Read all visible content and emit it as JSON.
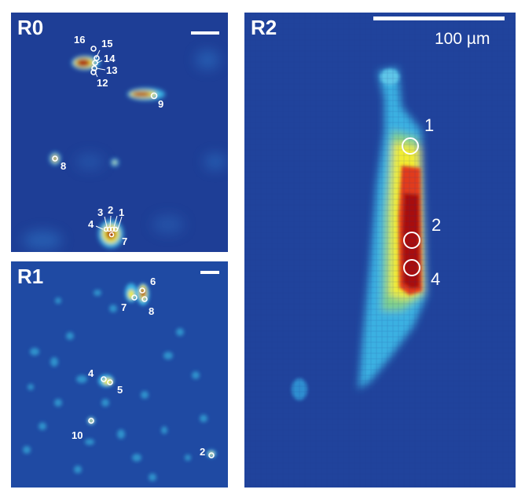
{
  "panels": {
    "r0": {
      "label": "R0",
      "rois": [
        {
          "id": "1",
          "label": "1"
        },
        {
          "id": "2",
          "label": "2"
        },
        {
          "id": "3",
          "label": "3"
        },
        {
          "id": "4",
          "label": "4"
        },
        {
          "id": "7",
          "label": "7"
        },
        {
          "id": "8",
          "label": "8"
        },
        {
          "id": "9",
          "label": "9"
        },
        {
          "id": "12",
          "label": "12"
        },
        {
          "id": "13",
          "label": "13"
        },
        {
          "id": "14",
          "label": "14"
        },
        {
          "id": "15",
          "label": "15"
        },
        {
          "id": "16",
          "label": "16"
        }
      ]
    },
    "r1": {
      "label": "R1",
      "rois": [
        {
          "id": "2",
          "label": "2"
        },
        {
          "id": "4",
          "label": "4"
        },
        {
          "id": "5",
          "label": "5"
        },
        {
          "id": "6",
          "label": "6"
        },
        {
          "id": "7",
          "label": "7"
        },
        {
          "id": "8",
          "label": "8"
        },
        {
          "id": "10",
          "label": "10"
        }
      ]
    },
    "r2": {
      "label": "R2",
      "scale_text": "100 µm",
      "rois": [
        {
          "id": "1",
          "label": "1"
        },
        {
          "id": "2",
          "label": "2"
        },
        {
          "id": "4",
          "label": "4"
        }
      ]
    }
  },
  "colors": {
    "background": "#1e3e96",
    "hot": "#a80a0a",
    "warm": "#f2ec32",
    "cool": "#3bb6e6"
  }
}
